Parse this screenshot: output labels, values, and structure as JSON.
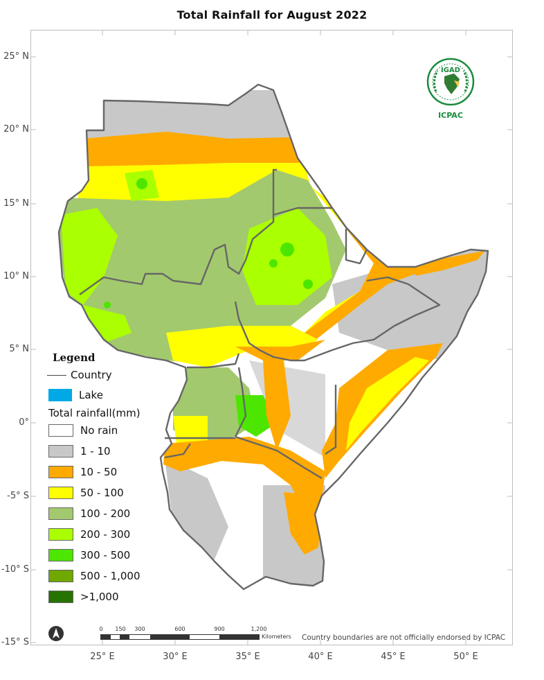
{
  "map": {
    "title": "Total  Rainfall for August 2022",
    "latitude_labels": [
      "25° N",
      "20° N",
      "15° N",
      "10° N",
      "5° N",
      "0°",
      "-5° S",
      "-10° S",
      "-15° S"
    ],
    "longitude_labels": [
      "25° E",
      "30° E",
      "35° E",
      "40° E",
      "45° E",
      "50° E"
    ],
    "scale_bar": {
      "ticks": [
        "0",
        "150",
        "300",
        "600",
        "900",
        "1,200"
      ],
      "unit": "Kilometers"
    },
    "disclaimer": "Country boundaries are not officially endorsed by ICPAC",
    "logo": {
      "top_text": "IGAD",
      "bottom_text": "ICPAC",
      "accent": "#1a8a3c"
    }
  },
  "legend": {
    "title": "Legend",
    "country_label": "Country",
    "lake_label": "Lake",
    "lake_color": "#00a9e6",
    "rainfall_title": "Total rainfall(mm)",
    "classes": [
      {
        "label": "No rain",
        "color": "#ffffff"
      },
      {
        "label": "1 - 10",
        "color": "#c8c8c8"
      },
      {
        "label": "10 - 50",
        "color": "#ffaa00"
      },
      {
        "label": "50 - 100",
        "color": "#ffff00"
      },
      {
        "label": "100 - 200",
        "color": "#a3c96e"
      },
      {
        "label": "200 - 300",
        "color": "#aaff00"
      },
      {
        "label": "300 - 500",
        "color": "#4ce600"
      },
      {
        "label": "500 - 1,000",
        "color": "#70a800"
      },
      {
        "label": ">1,000",
        "color": "#267300"
      }
    ]
  }
}
